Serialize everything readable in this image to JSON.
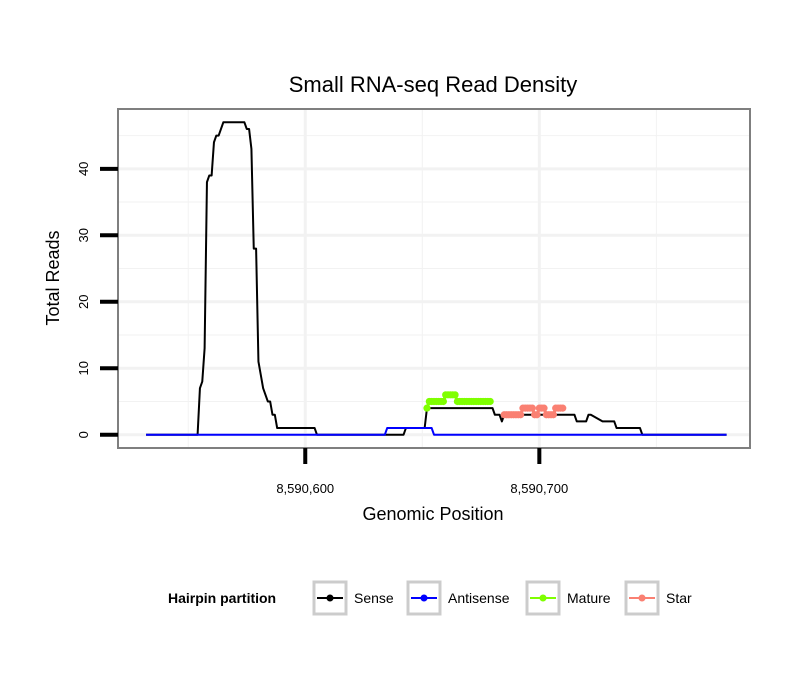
{
  "chart_data": {
    "type": "line",
    "title": "Small RNA-seq Read Density",
    "xlabel": "Genomic Position",
    "ylabel": "Total Reads",
    "xlim": [
      8590520,
      8590790
    ],
    "ylim": [
      -2,
      49
    ],
    "x_ticks": [
      8590600,
      8590700
    ],
    "x_tick_labels": [
      "8,590,600",
      "8,590,700"
    ],
    "y_ticks": [
      0,
      10,
      20,
      30,
      40
    ],
    "y_tick_labels": [
      "0",
      "10",
      "20",
      "30",
      "40"
    ],
    "grid": true,
    "legend": {
      "title": "Hairpin partition",
      "placement": "bottom",
      "entries": [
        "Sense",
        "Antisense",
        "Mature",
        "Star"
      ]
    },
    "colors": {
      "Sense": "#000000",
      "Antisense": "#0000ff",
      "Mature": "#7fff00",
      "Star": "#fa8072"
    },
    "series": [
      {
        "name": "Sense",
        "style": "line",
        "x": [
          8590532,
          8590554,
          8590555,
          8590556,
          8590557,
          8590558,
          8590559,
          8590560,
          8590561,
          8590562,
          8590563,
          8590564,
          8590565,
          8590566,
          8590574,
          8590575,
          8590576,
          8590577,
          8590578,
          8590579,
          8590580,
          8590581,
          8590582,
          8590583,
          8590584,
          8590585,
          8590586,
          8590587,
          8590588,
          8590589,
          8590590,
          8590604,
          8590605,
          8590642,
          8590643,
          8590651,
          8590652,
          8590680,
          8590681,
          8590682,
          8590683,
          8590684,
          8590685,
          8590710,
          8590711,
          8590712,
          8590715,
          8590716,
          8590717,
          8590720,
          8590721,
          8590722,
          8590727,
          8590728,
          8590729,
          8590732,
          8590733,
          8590734,
          8590743,
          8590744,
          8590780
        ],
        "y": [
          0,
          0,
          7,
          8,
          13,
          38,
          39,
          39,
          44,
          45,
          45,
          46,
          47,
          47,
          47,
          46,
          46,
          43,
          28,
          28,
          11,
          9,
          7,
          6,
          5,
          5,
          3,
          3,
          1,
          1,
          1,
          1,
          0,
          0,
          1,
          1,
          4,
          4,
          3,
          3,
          3,
          2,
          3,
          3,
          3,
          3,
          3,
          2,
          2,
          2,
          3,
          3,
          2,
          2,
          2,
          2,
          1,
          1,
          1,
          0,
          0
        ]
      },
      {
        "name": "Antisense",
        "style": "line",
        "x": [
          8590532,
          8590634,
          8590635,
          8590654,
          8590655,
          8590780
        ],
        "y": [
          0,
          0,
          1,
          1,
          0,
          0
        ]
      },
      {
        "name": "Mature",
        "style": "line-points",
        "x": [
          8590652,
          8590653,
          8590654,
          8590655,
          8590656,
          8590657,
          8590658,
          8590659,
          8590660,
          8590661,
          8590662,
          8590663,
          8590664,
          8590665,
          8590666,
          8590667,
          8590668,
          8590669,
          8590670,
          8590671,
          8590672,
          8590673,
          8590674,
          8590675,
          8590676,
          8590677,
          8590678,
          8590679
        ],
        "y": [
          4,
          5,
          5,
          5,
          5,
          5,
          5,
          5,
          6,
          6,
          6,
          6,
          6,
          5,
          5,
          5,
          5,
          5,
          5,
          5,
          5,
          5,
          5,
          5,
          5,
          5,
          5,
          5
        ]
      },
      {
        "name": "Star",
        "style": "line-points",
        "x": [
          8590685,
          8590686,
          8590687,
          8590688,
          8590689,
          8590690,
          8590691,
          8590692,
          8590693,
          8590694,
          8590695,
          8590696,
          8590697,
          8590698,
          8590699,
          8590700,
          8590701,
          8590702,
          8590703,
          8590704,
          8590705,
          8590706,
          8590707,
          8590708,
          8590709,
          8590710
        ],
        "y": [
          3,
          3,
          3,
          3,
          3,
          3,
          3,
          3,
          4,
          4,
          4,
          4,
          4,
          3,
          3,
          4,
          4,
          4,
          3,
          3,
          3,
          3,
          4,
          4,
          4,
          4
        ]
      }
    ]
  }
}
